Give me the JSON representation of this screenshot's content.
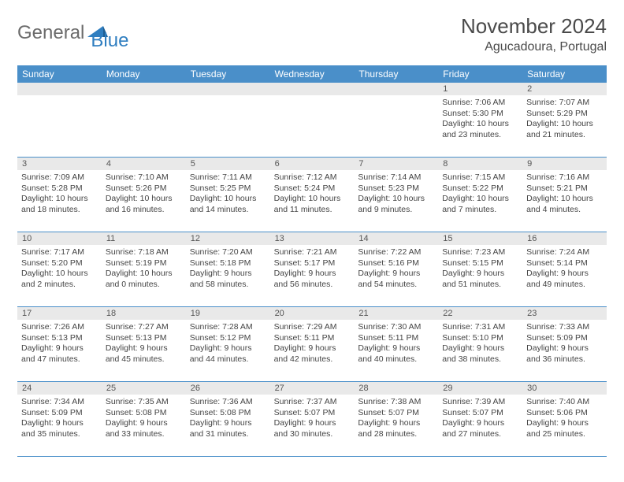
{
  "logo": {
    "text1": "General",
    "text2": "Blue"
  },
  "title": "November 2024",
  "location": "Agucadoura, Portugal",
  "colors": {
    "header_bg": "#4a8fc9",
    "header_text": "#ffffff",
    "daynum_bg": "#e9e9e9",
    "rule": "#4a8fc9",
    "body_text": "#444444",
    "logo_gray": "#6b6b6b",
    "logo_blue": "#2f7ec0"
  },
  "fonts": {
    "title_pt": 26,
    "location_pt": 16,
    "dow_pt": 12,
    "cell_pt": 10.5
  },
  "days_of_week": [
    "Sunday",
    "Monday",
    "Tuesday",
    "Wednesday",
    "Thursday",
    "Friday",
    "Saturday"
  ],
  "weeks": [
    [
      null,
      null,
      null,
      null,
      null,
      {
        "n": "1",
        "sunrise": "7:06 AM",
        "sunset": "5:30 PM",
        "daylight": "10 hours and 23 minutes."
      },
      {
        "n": "2",
        "sunrise": "7:07 AM",
        "sunset": "5:29 PM",
        "daylight": "10 hours and 21 minutes."
      }
    ],
    [
      {
        "n": "3",
        "sunrise": "7:09 AM",
        "sunset": "5:28 PM",
        "daylight": "10 hours and 18 minutes."
      },
      {
        "n": "4",
        "sunrise": "7:10 AM",
        "sunset": "5:26 PM",
        "daylight": "10 hours and 16 minutes."
      },
      {
        "n": "5",
        "sunrise": "7:11 AM",
        "sunset": "5:25 PM",
        "daylight": "10 hours and 14 minutes."
      },
      {
        "n": "6",
        "sunrise": "7:12 AM",
        "sunset": "5:24 PM",
        "daylight": "10 hours and 11 minutes."
      },
      {
        "n": "7",
        "sunrise": "7:14 AM",
        "sunset": "5:23 PM",
        "daylight": "10 hours and 9 minutes."
      },
      {
        "n": "8",
        "sunrise": "7:15 AM",
        "sunset": "5:22 PM",
        "daylight": "10 hours and 7 minutes."
      },
      {
        "n": "9",
        "sunrise": "7:16 AM",
        "sunset": "5:21 PM",
        "daylight": "10 hours and 4 minutes."
      }
    ],
    [
      {
        "n": "10",
        "sunrise": "7:17 AM",
        "sunset": "5:20 PM",
        "daylight": "10 hours and 2 minutes."
      },
      {
        "n": "11",
        "sunrise": "7:18 AM",
        "sunset": "5:19 PM",
        "daylight": "10 hours and 0 minutes."
      },
      {
        "n": "12",
        "sunrise": "7:20 AM",
        "sunset": "5:18 PM",
        "daylight": "9 hours and 58 minutes."
      },
      {
        "n": "13",
        "sunrise": "7:21 AM",
        "sunset": "5:17 PM",
        "daylight": "9 hours and 56 minutes."
      },
      {
        "n": "14",
        "sunrise": "7:22 AM",
        "sunset": "5:16 PM",
        "daylight": "9 hours and 54 minutes."
      },
      {
        "n": "15",
        "sunrise": "7:23 AM",
        "sunset": "5:15 PM",
        "daylight": "9 hours and 51 minutes."
      },
      {
        "n": "16",
        "sunrise": "7:24 AM",
        "sunset": "5:14 PM",
        "daylight": "9 hours and 49 minutes."
      }
    ],
    [
      {
        "n": "17",
        "sunrise": "7:26 AM",
        "sunset": "5:13 PM",
        "daylight": "9 hours and 47 minutes."
      },
      {
        "n": "18",
        "sunrise": "7:27 AM",
        "sunset": "5:13 PM",
        "daylight": "9 hours and 45 minutes."
      },
      {
        "n": "19",
        "sunrise": "7:28 AM",
        "sunset": "5:12 PM",
        "daylight": "9 hours and 44 minutes."
      },
      {
        "n": "20",
        "sunrise": "7:29 AM",
        "sunset": "5:11 PM",
        "daylight": "9 hours and 42 minutes."
      },
      {
        "n": "21",
        "sunrise": "7:30 AM",
        "sunset": "5:11 PM",
        "daylight": "9 hours and 40 minutes."
      },
      {
        "n": "22",
        "sunrise": "7:31 AM",
        "sunset": "5:10 PM",
        "daylight": "9 hours and 38 minutes."
      },
      {
        "n": "23",
        "sunrise": "7:33 AM",
        "sunset": "5:09 PM",
        "daylight": "9 hours and 36 minutes."
      }
    ],
    [
      {
        "n": "24",
        "sunrise": "7:34 AM",
        "sunset": "5:09 PM",
        "daylight": "9 hours and 35 minutes."
      },
      {
        "n": "25",
        "sunrise": "7:35 AM",
        "sunset": "5:08 PM",
        "daylight": "9 hours and 33 minutes."
      },
      {
        "n": "26",
        "sunrise": "7:36 AM",
        "sunset": "5:08 PM",
        "daylight": "9 hours and 31 minutes."
      },
      {
        "n": "27",
        "sunrise": "7:37 AM",
        "sunset": "5:07 PM",
        "daylight": "9 hours and 30 minutes."
      },
      {
        "n": "28",
        "sunrise": "7:38 AM",
        "sunset": "5:07 PM",
        "daylight": "9 hours and 28 minutes."
      },
      {
        "n": "29",
        "sunrise": "7:39 AM",
        "sunset": "5:07 PM",
        "daylight": "9 hours and 27 minutes."
      },
      {
        "n": "30",
        "sunrise": "7:40 AM",
        "sunset": "5:06 PM",
        "daylight": "9 hours and 25 minutes."
      }
    ]
  ],
  "labels": {
    "sunrise": "Sunrise: ",
    "sunset": "Sunset: ",
    "daylight": "Daylight: "
  }
}
